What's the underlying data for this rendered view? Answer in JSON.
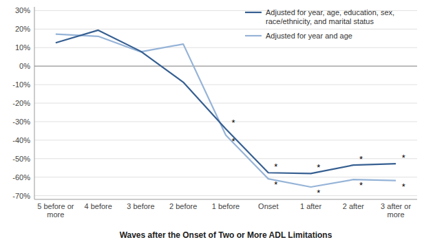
{
  "chart_data": {
    "type": "line",
    "xlabel": "Waves after the Onset of Two or More ADL Limitations",
    "categories": [
      "5 before or\nmore",
      "4 before",
      "3 before",
      "2 before",
      "1 before",
      "Onset",
      "1 after",
      "2 after",
      "3 after or\nmore"
    ],
    "series": [
      {
        "name": "Adjusted for year, age, education, sex,\nrace/ethnicity, and marital status",
        "color": "#365F91",
        "values": [
          0.126,
          0.194,
          0.08,
          -0.087,
          -0.339,
          -0.576,
          -0.58,
          -0.535,
          -0.527
        ]
      },
      {
        "name": "Adjusted for year and age",
        "color": "#95B3D7",
        "values": [
          0.173,
          0.161,
          0.077,
          0.119,
          -0.373,
          -0.609,
          -0.653,
          -0.613,
          -0.618
        ]
      }
    ],
    "annotations": [
      {
        "text": "*",
        "series": 0,
        "index": 4
      },
      {
        "text": "*",
        "series": 0,
        "index": 5
      },
      {
        "text": "*",
        "series": 0,
        "index": 6
      },
      {
        "text": "*",
        "series": 0,
        "index": 7
      },
      {
        "text": "*",
        "series": 0,
        "index": 8
      },
      {
        "text": "*",
        "series": 1,
        "index": 4
      },
      {
        "text": "*",
        "series": 1,
        "index": 5
      },
      {
        "text": "*",
        "series": 1,
        "index": 6
      },
      {
        "text": "*",
        "series": 1,
        "index": 7
      },
      {
        "text": "*",
        "series": 1,
        "index": 8
      }
    ],
    "ylim": [
      -0.72,
      0.32
    ],
    "yticks": [
      {
        "value": -0.7,
        "label": "-70%"
      },
      {
        "value": -0.6,
        "label": "-60%"
      },
      {
        "value": -0.5,
        "label": "-50%"
      },
      {
        "value": -0.4,
        "label": "-40%"
      },
      {
        "value": -0.3,
        "label": "-30%"
      },
      {
        "value": -0.2,
        "label": "-20%"
      },
      {
        "value": -0.1,
        "label": "-10%"
      },
      {
        "value": 0.0,
        "label": "0%"
      },
      {
        "value": 0.1,
        "label": "10%"
      },
      {
        "value": 0.2,
        "label": "20%"
      },
      {
        "value": 0.3,
        "label": "30%"
      }
    ],
    "grid": true,
    "legend": "upper right"
  }
}
